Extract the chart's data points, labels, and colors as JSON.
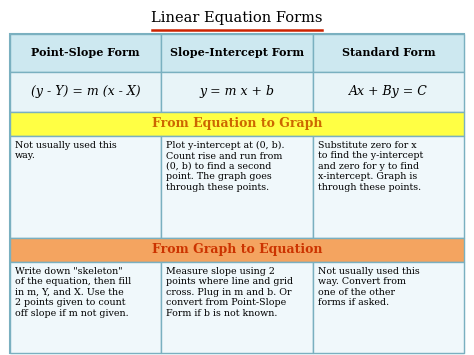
{
  "title": "Linear Equation Forms",
  "title_color": "#000000",
  "title_underline_color": "#cc2200",
  "header_bg": "#cde8f0",
  "header_border": "#7ab0c0",
  "formula_bg": "#e8f4f8",
  "sec1_header_bg": "#ffff44",
  "sec1_header_color": "#cc6600",
  "sec2_header_bg": "#f4a460",
  "sec2_header_color": "#cc3300",
  "cell_bg": "#f0f8fb",
  "cell_border": "#7ab0c0",
  "outer_border": "#7ab0c0",
  "col_headers": [
    "Point-Slope Form",
    "Slope-Intercept Form",
    "Standard Form"
  ],
  "formulas": [
    "(y - Y) = m (x - X)",
    "y = m x + b",
    "Ax + By = C"
  ],
  "section1_title": "From Equation to Graph",
  "section1_texts": [
    "Not usually used this\nway.",
    "Plot y-intercept at (0, b).\nCount rise and run from\n(0, b) to find a second\npoint. The graph goes\nthrough these points.",
    "Substitute zero for x\nto find the y-intercept\nand zero for y to find\nx-intercept. Graph is\nthrough these points."
  ],
  "section2_title": "From Graph to Equation",
  "section2_texts": [
    "Write down \"skeleton\"\nof the equation, then fill\nin m, Y, and X. Use the\n2 points given to count\noff slope if m not given.",
    "Measure slope using 2\npoints where line and grid\ncross. Plug in m and b. Or\nconvert from Point-Slope\nForm if b is not known.",
    "Not usually used this\nway. Convert from\none of the other\nforms if asked."
  ]
}
